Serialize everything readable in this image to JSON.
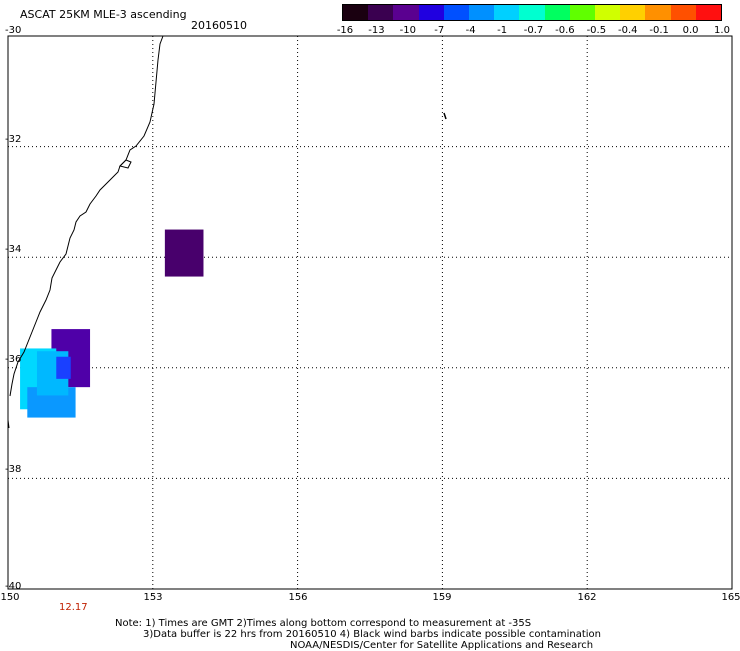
{
  "header": {
    "title": "ASCAT 25KM MLE-3 ascending",
    "date": "20160510"
  },
  "colorbar": {
    "labels": [
      "-16",
      "-13",
      "-10",
      "-7",
      "-4",
      "-1",
      "-0.7",
      "-0.6",
      "-0.5",
      "-0.4",
      "-0.1",
      "0.0",
      "1.0"
    ],
    "colors": [
      "#1a0010",
      "#3a0050",
      "#5a0090",
      "#2000e0",
      "#0050ff",
      "#0090ff",
      "#00d0ff",
      "#00ffd0",
      "#00ff60",
      "#60ff00",
      "#d0ff00",
      "#ffd000",
      "#ff9000",
      "#ff5000",
      "#ff1010"
    ]
  },
  "axes": {
    "lat_labels": [
      "-30",
      "-32",
      "-34",
      "-36",
      "-38",
      "-40"
    ],
    "lon_labels": [
      "150",
      "153",
      "156",
      "159",
      "162",
      "165"
    ]
  },
  "time_label": "12.17",
  "notes": {
    "line1": "Note: 1) Times are GMT 2)Times along bottom correspond to measurement at -35S",
    "line2": "3)Data buffer is 22 hrs from 20160510 4) Black wind barbs indicate possible contamination",
    "line3": "NOAA/NESDIS/Center for Satellite Applications and Research"
  },
  "data_cells": [
    {
      "lon": [
        153.25,
        154.05
      ],
      "lat": [
        -33.5,
        -34.35
      ],
      "color": "#48006c"
    },
    {
      "lon": [
        150.9,
        151.7
      ],
      "lat": [
        -35.3,
        -36.35
      ],
      "color": "#4f00a8"
    },
    {
      "lon": [
        150.25,
        151.0
      ],
      "lat": [
        -35.65,
        -36.75
      ],
      "color": "#00d8ff"
    },
    {
      "lon": [
        150.4,
        151.4
      ],
      "lat": [
        -36.35,
        -36.9
      ],
      "color": "#0a98ff"
    },
    {
      "lon": [
        150.6,
        151.25
      ],
      "lat": [
        -35.7,
        -36.5
      ],
      "color": "#00b8ff"
    },
    {
      "lon": [
        151.0,
        151.3
      ],
      "lat": [
        -35.8,
        -36.2
      ],
      "color": "#1a40ff"
    }
  ],
  "map_extent": {
    "lon": [
      150,
      165
    ],
    "lat": [
      -30,
      -40
    ]
  }
}
